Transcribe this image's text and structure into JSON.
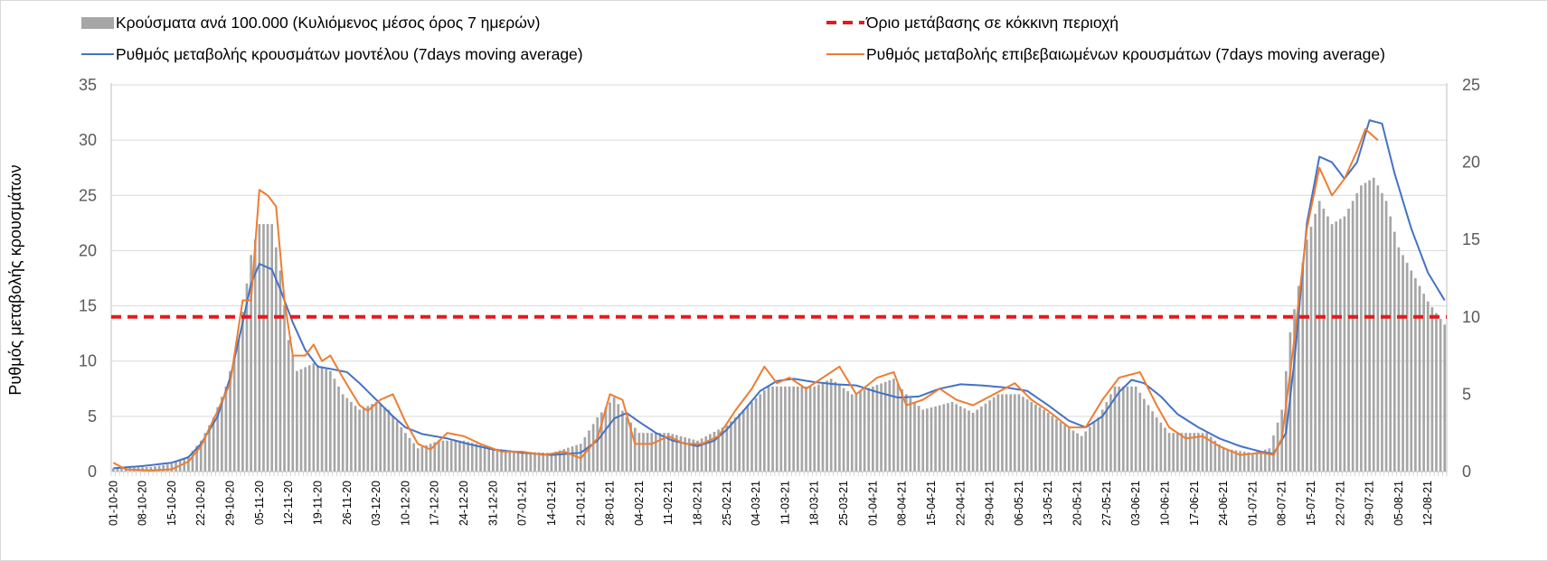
{
  "chart_data": {
    "type": "bar+line",
    "ylabel_left": "Ρυθμός μεταβολής κρουσμάτων",
    "y_left_range": [
      0,
      35
    ],
    "y_left_ticks": [
      "0",
      "5",
      "10",
      "15",
      "20",
      "25",
      "30",
      "35"
    ],
    "y_right_range": [
      0,
      25
    ],
    "y_right_ticks": [
      "0",
      "5",
      "10",
      "15",
      "20",
      "25"
    ],
    "grid": true,
    "legend_position": "top",
    "x_start": "2020-10-01",
    "x_end": "2021-08-16",
    "x_tick_labels": [
      "01-10-20",
      "08-10-20",
      "15-10-20",
      "22-10-20",
      "29-10-20",
      "05-11-20",
      "12-11-20",
      "19-11-20",
      "26-11-20",
      "03-12-20",
      "10-12-20",
      "17-12-20",
      "24-12-20",
      "31-12-20",
      "07-01-21",
      "14-01-21",
      "21-01-21",
      "28-01-21",
      "04-02-21",
      "11-02-21",
      "18-02-21",
      "25-02-21",
      "04-03-21",
      "11-03-21",
      "18-03-21",
      "25-03-21",
      "01-04-21",
      "08-04-21",
      "15-04-21",
      "22-04-21",
      "29-04-21",
      "06-05-21",
      "13-05-21",
      "20-05-21",
      "27-05-21",
      "03-06-21",
      "10-06-21",
      "17-06-21",
      "24-06-21",
      "01-07-21",
      "08-07-21",
      "15-07-21",
      "22-07-21",
      "29-07-21",
      "05-08-21",
      "12-08-21"
    ],
    "threshold": {
      "name": "Όριο μετάβασης σε κόκκινη περιοχή",
      "value": 10,
      "axis": "right",
      "color": "#e31a1c"
    },
    "series": [
      {
        "name": "Κρούσματα ανά 100.000 (Κυλιόμενος μέσος όρος 7 ημερών)",
        "kind": "bar",
        "axis": "right",
        "color": "#a6a6a6",
        "points": [
          [
            "2020-10-01",
            0.2
          ],
          [
            "2020-10-10",
            0.3
          ],
          [
            "2020-10-15",
            0.5
          ],
          [
            "2020-10-19",
            1.0
          ],
          [
            "2020-10-22",
            2.0
          ],
          [
            "2020-10-25",
            3.5
          ],
          [
            "2020-10-28",
            5.5
          ],
          [
            "2020-10-31",
            8.5
          ],
          [
            "2020-11-03",
            14.0
          ],
          [
            "2020-11-05",
            16.0
          ],
          [
            "2020-11-08",
            16.0
          ],
          [
            "2020-11-10",
            13.0
          ],
          [
            "2020-11-12",
            8.5
          ],
          [
            "2020-11-14",
            6.5
          ],
          [
            "2020-11-18",
            7.0
          ],
          [
            "2020-11-22",
            6.5
          ],
          [
            "2020-11-25",
            5.0
          ],
          [
            "2020-11-29",
            4.0
          ],
          [
            "2020-12-03",
            4.5
          ],
          [
            "2020-12-06",
            4.0
          ],
          [
            "2020-12-10",
            2.5
          ],
          [
            "2020-12-13",
            1.5
          ],
          [
            "2020-12-18",
            2.0
          ],
          [
            "2020-12-24",
            2.0
          ],
          [
            "2020-12-31",
            1.5
          ],
          [
            "2021-01-07",
            1.3
          ],
          [
            "2021-01-14",
            1.2
          ],
          [
            "2021-01-21",
            1.8
          ],
          [
            "2021-01-25",
            3.5
          ],
          [
            "2021-01-29",
            4.8
          ],
          [
            "2021-02-01",
            3.5
          ],
          [
            "2021-02-04",
            2.5
          ],
          [
            "2021-02-11",
            2.5
          ],
          [
            "2021-02-18",
            2.0
          ],
          [
            "2021-02-25",
            3.0
          ],
          [
            "2021-03-01",
            4.0
          ],
          [
            "2021-03-07",
            5.5
          ],
          [
            "2021-03-11",
            5.5
          ],
          [
            "2021-03-18",
            5.5
          ],
          [
            "2021-03-22",
            6.0
          ],
          [
            "2021-03-27",
            5.0
          ],
          [
            "2021-04-01",
            5.5
          ],
          [
            "2021-04-06",
            6.0
          ],
          [
            "2021-04-09",
            5.0
          ],
          [
            "2021-04-13",
            4.0
          ],
          [
            "2021-04-20",
            4.5
          ],
          [
            "2021-04-25",
            3.8
          ],
          [
            "2021-05-01",
            5.0
          ],
          [
            "2021-05-06",
            5.0
          ],
          [
            "2021-05-12",
            4.0
          ],
          [
            "2021-05-17",
            3.0
          ],
          [
            "2021-05-21",
            2.3
          ],
          [
            "2021-05-25",
            3.5
          ],
          [
            "2021-05-29",
            5.5
          ],
          [
            "2021-06-03",
            5.5
          ],
          [
            "2021-06-08",
            3.5
          ],
          [
            "2021-06-11",
            2.5
          ],
          [
            "2021-06-15",
            2.5
          ],
          [
            "2021-06-20",
            2.5
          ],
          [
            "2021-06-24",
            1.5
          ],
          [
            "2021-07-01",
            1.2
          ],
          [
            "2021-07-05",
            1.5
          ],
          [
            "2021-07-08",
            4.0
          ],
          [
            "2021-07-10",
            9.0
          ],
          [
            "2021-07-14",
            15.0
          ],
          [
            "2021-07-17",
            17.5
          ],
          [
            "2021-07-20",
            16.0
          ],
          [
            "2021-07-23",
            16.5
          ],
          [
            "2021-07-27",
            18.5
          ],
          [
            "2021-07-30",
            19.0
          ],
          [
            "2021-08-02",
            17.5
          ],
          [
            "2021-08-05",
            14.5
          ],
          [
            "2021-08-08",
            13.0
          ],
          [
            "2021-08-12",
            11.0
          ],
          [
            "2021-08-16",
            9.5
          ]
        ]
      },
      {
        "name": "Ρυθμός μεταβολής κρουσμάτων μοντέλου (7days moving average)",
        "kind": "line",
        "axis": "left",
        "color": "#4472c4",
        "points": [
          [
            "2020-10-01",
            0.3
          ],
          [
            "2020-10-08",
            0.5
          ],
          [
            "2020-10-15",
            0.8
          ],
          [
            "2020-10-19",
            1.3
          ],
          [
            "2020-10-22",
            2.5
          ],
          [
            "2020-10-26",
            5.0
          ],
          [
            "2020-10-29",
            8.5
          ],
          [
            "2020-11-01",
            13.5
          ],
          [
            "2020-11-03",
            17.0
          ],
          [
            "2020-11-05",
            18.8
          ],
          [
            "2020-11-08",
            18.3
          ],
          [
            "2020-11-10",
            16.5
          ],
          [
            "2020-11-13",
            13.5
          ],
          [
            "2020-11-16",
            11.0
          ],
          [
            "2020-11-19",
            9.5
          ],
          [
            "2020-11-22",
            9.3
          ],
          [
            "2020-11-26",
            9.0
          ],
          [
            "2020-11-29",
            8.0
          ],
          [
            "2020-12-03",
            6.5
          ],
          [
            "2020-12-07",
            5.0
          ],
          [
            "2020-12-10",
            4.0
          ],
          [
            "2020-12-14",
            3.4
          ],
          [
            "2020-12-20",
            3.0
          ],
          [
            "2020-12-25",
            2.5
          ],
          [
            "2020-12-31",
            2.0
          ],
          [
            "2021-01-07",
            1.7
          ],
          [
            "2021-01-14",
            1.5
          ],
          [
            "2021-01-21",
            1.7
          ],
          [
            "2021-01-25",
            2.8
          ],
          [
            "2021-01-29",
            4.8
          ],
          [
            "2021-02-01",
            5.3
          ],
          [
            "2021-02-04",
            4.5
          ],
          [
            "2021-02-08",
            3.5
          ],
          [
            "2021-02-12",
            2.8
          ],
          [
            "2021-02-18",
            2.3
          ],
          [
            "2021-02-22",
            2.8
          ],
          [
            "2021-02-25",
            3.8
          ],
          [
            "2021-03-01",
            5.5
          ],
          [
            "2021-03-05",
            7.3
          ],
          [
            "2021-03-09",
            8.2
          ],
          [
            "2021-03-13",
            8.4
          ],
          [
            "2021-03-18",
            8.1
          ],
          [
            "2021-03-23",
            7.9
          ],
          [
            "2021-03-28",
            7.8
          ],
          [
            "2021-04-02",
            7.2
          ],
          [
            "2021-04-07",
            6.7
          ],
          [
            "2021-04-12",
            6.8
          ],
          [
            "2021-04-17",
            7.5
          ],
          [
            "2021-04-22",
            7.9
          ],
          [
            "2021-04-27",
            7.8
          ],
          [
            "2021-05-03",
            7.6
          ],
          [
            "2021-05-08",
            7.3
          ],
          [
            "2021-05-13",
            6.0
          ],
          [
            "2021-05-18",
            4.6
          ],
          [
            "2021-05-22",
            4.0
          ],
          [
            "2021-05-26",
            5.0
          ],
          [
            "2021-05-30",
            7.2
          ],
          [
            "2021-06-02",
            8.3
          ],
          [
            "2021-06-05",
            8.0
          ],
          [
            "2021-06-09",
            6.8
          ],
          [
            "2021-06-13",
            5.2
          ],
          [
            "2021-06-18",
            4.0
          ],
          [
            "2021-06-23",
            3.0
          ],
          [
            "2021-06-28",
            2.3
          ],
          [
            "2021-07-03",
            1.8
          ],
          [
            "2021-07-06",
            1.6
          ],
          [
            "2021-07-09",
            3.5
          ],
          [
            "2021-07-11",
            10.0
          ],
          [
            "2021-07-14",
            22.5
          ],
          [
            "2021-07-17",
            28.5
          ],
          [
            "2021-07-20",
            28.0
          ],
          [
            "2021-07-23",
            26.5
          ],
          [
            "2021-07-26",
            28.0
          ],
          [
            "2021-07-29",
            31.8
          ],
          [
            "2021-08-01",
            31.5
          ],
          [
            "2021-08-04",
            27.0
          ],
          [
            "2021-08-08",
            22.0
          ],
          [
            "2021-08-12",
            18.0
          ],
          [
            "2021-08-16",
            15.5
          ]
        ]
      },
      {
        "name": "Ρυθμός μεταβολής επιβεβαιωμένων κρουσμάτων (7days moving average)",
        "kind": "line",
        "axis": "left",
        "color": "#ed7d31",
        "points": [
          [
            "2020-10-01",
            0.8
          ],
          [
            "2020-10-04",
            0.2
          ],
          [
            "2020-10-10",
            0.1
          ],
          [
            "2020-10-15",
            0.2
          ],
          [
            "2020-10-19",
            0.9
          ],
          [
            "2020-10-22",
            2.3
          ],
          [
            "2020-10-26",
            5.5
          ],
          [
            "2020-10-29",
            8.0
          ],
          [
            "2020-11-01",
            15.5
          ],
          [
            "2020-11-03",
            15.5
          ],
          [
            "2020-11-05",
            25.5
          ],
          [
            "2020-11-07",
            25.0
          ],
          [
            "2020-11-09",
            24.0
          ],
          [
            "2020-11-11",
            15.5
          ],
          [
            "2020-11-13",
            10.5
          ],
          [
            "2020-11-16",
            10.5
          ],
          [
            "2020-11-18",
            11.5
          ],
          [
            "2020-11-20",
            10.0
          ],
          [
            "2020-11-22",
            10.5
          ],
          [
            "2020-11-25",
            8.5
          ],
          [
            "2020-11-29",
            6.0
          ],
          [
            "2020-12-01",
            5.5
          ],
          [
            "2020-12-04",
            6.5
          ],
          [
            "2020-12-07",
            7.0
          ],
          [
            "2020-12-10",
            4.5
          ],
          [
            "2020-12-13",
            2.5
          ],
          [
            "2020-12-16",
            2.0
          ],
          [
            "2020-12-20",
            3.5
          ],
          [
            "2020-12-24",
            3.2
          ],
          [
            "2020-12-28",
            2.5
          ],
          [
            "2021-01-02",
            1.8
          ],
          [
            "2021-01-07",
            1.8
          ],
          [
            "2021-01-12",
            1.5
          ],
          [
            "2021-01-17",
            1.8
          ],
          [
            "2021-01-21",
            1.2
          ],
          [
            "2021-01-25",
            3.0
          ],
          [
            "2021-01-28",
            7.0
          ],
          [
            "2021-01-31",
            6.5
          ],
          [
            "2021-02-03",
            2.5
          ],
          [
            "2021-02-07",
            2.5
          ],
          [
            "2021-02-11",
            3.2
          ],
          [
            "2021-02-15",
            2.5
          ],
          [
            "2021-02-19",
            2.5
          ],
          [
            "2021-02-23",
            3.2
          ],
          [
            "2021-02-27",
            5.5
          ],
          [
            "2021-03-03",
            7.5
          ],
          [
            "2021-03-06",
            9.5
          ],
          [
            "2021-03-09",
            8.0
          ],
          [
            "2021-03-12",
            8.5
          ],
          [
            "2021-03-16",
            7.5
          ],
          [
            "2021-03-20",
            8.5
          ],
          [
            "2021-03-24",
            9.5
          ],
          [
            "2021-03-28",
            7.0
          ],
          [
            "2021-04-02",
            8.5
          ],
          [
            "2021-04-06",
            9.0
          ],
          [
            "2021-04-09",
            6.0
          ],
          [
            "2021-04-13",
            6.5
          ],
          [
            "2021-04-17",
            7.5
          ],
          [
            "2021-04-21",
            6.5
          ],
          [
            "2021-04-25",
            6.0
          ],
          [
            "2021-04-30",
            7.0
          ],
          [
            "2021-05-05",
            8.0
          ],
          [
            "2021-05-09",
            6.5
          ],
          [
            "2021-05-13",
            5.5
          ],
          [
            "2021-05-18",
            4.0
          ],
          [
            "2021-05-22",
            4.0
          ],
          [
            "2021-05-26",
            6.5
          ],
          [
            "2021-05-30",
            8.5
          ],
          [
            "2021-06-04",
            9.0
          ],
          [
            "2021-06-08",
            6.0
          ],
          [
            "2021-06-11",
            4.0
          ],
          [
            "2021-06-15",
            3.0
          ],
          [
            "2021-06-19",
            3.2
          ],
          [
            "2021-06-23",
            2.3
          ],
          [
            "2021-06-28",
            1.5
          ],
          [
            "2021-07-03",
            1.7
          ],
          [
            "2021-07-06",
            1.5
          ],
          [
            "2021-07-08",
            3.0
          ],
          [
            "2021-07-11",
            12.0
          ],
          [
            "2021-07-14",
            22.0
          ],
          [
            "2021-07-17",
            27.5
          ],
          [
            "2021-07-20",
            25.0
          ],
          [
            "2021-07-23",
            26.5
          ],
          [
            "2021-07-26",
            29.0
          ],
          [
            "2021-07-28",
            31.0
          ],
          [
            "2021-07-31",
            30.0
          ]
        ]
      }
    ]
  }
}
